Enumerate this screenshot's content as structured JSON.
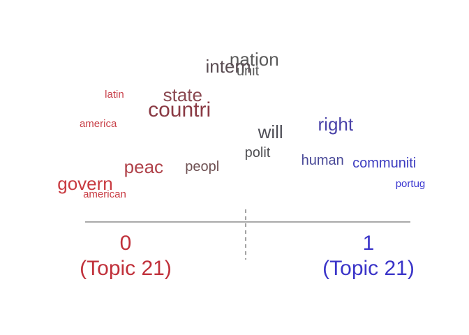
{
  "chart_data": {
    "type": "scatter",
    "title": "",
    "xlabel": "",
    "ylabel": "",
    "poles": [
      {
        "value": "0",
        "topic": "(Topic 21)",
        "color": "#c0303a"
      },
      {
        "value": "1",
        "topic": "(Topic 21)",
        "color": "#3a34c8"
      }
    ],
    "xlim": [
      0,
      1
    ],
    "words": [
      {
        "text": "nation",
        "x": 0.52,
        "color": "#5a5a5a",
        "size": "large"
      },
      {
        "text": "intern",
        "x": 0.44,
        "color": "#5a4c52",
        "size": "large"
      },
      {
        "text": "unit",
        "x": 0.5,
        "color": "#5a5a5a",
        "size": "medium"
      },
      {
        "text": "latin",
        "x": 0.09,
        "color": "#c8404a",
        "size": "small"
      },
      {
        "text": "state",
        "x": 0.3,
        "color": "#8a4850",
        "size": "large"
      },
      {
        "text": "countri",
        "x": 0.29,
        "color": "#8a3a44",
        "size": "xlarge"
      },
      {
        "text": "america",
        "x": 0.04,
        "color": "#c84048",
        "size": "small"
      },
      {
        "text": "will",
        "x": 0.57,
        "color": "#4e4e56",
        "size": "large"
      },
      {
        "text": "right",
        "x": 0.77,
        "color": "#4a42a8",
        "size": "large"
      },
      {
        "text": "polit",
        "x": 0.53,
        "color": "#4e4e52",
        "size": "medium"
      },
      {
        "text": "human",
        "x": 0.73,
        "color": "#4a4a98",
        "size": "medium"
      },
      {
        "text": "communiti",
        "x": 0.92,
        "color": "#3c3cc0",
        "size": "medium"
      },
      {
        "text": "peac",
        "x": 0.18,
        "color": "#b0424a",
        "size": "large"
      },
      {
        "text": "peopl",
        "x": 0.36,
        "color": "#6e5052",
        "size": "medium"
      },
      {
        "text": "portug",
        "x": 1.0,
        "color": "#3a36d0",
        "size": "small"
      },
      {
        "text": "govern",
        "x": 0.0,
        "color": "#c83a40",
        "size": "large"
      },
      {
        "text": "american",
        "x": 0.06,
        "color": "#c83a42",
        "size": "small"
      }
    ]
  }
}
